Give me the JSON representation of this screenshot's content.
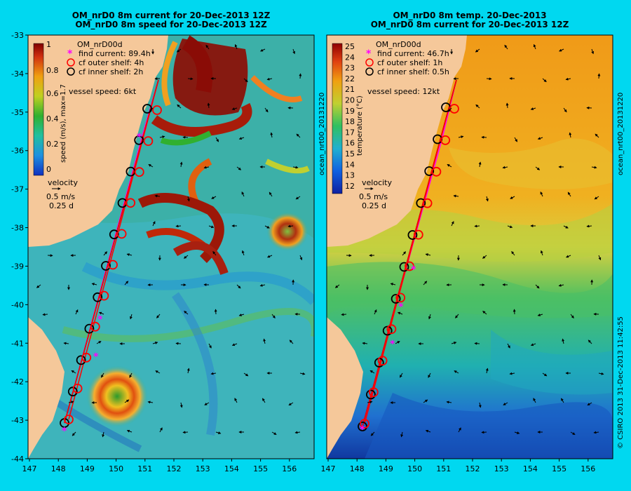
{
  "panels": [
    {
      "title_line1": "OM_nrD0 8m current for 20-Dec-2013 12Z",
      "title_line2": "OM_nrD0 8m speed for 20-Dec-2013 12Z",
      "model_name": "OM_nrD00d",
      "legend": [
        {
          "text": "find current: 89.4h",
          "symbol": "asterisk",
          "color": "#ff00ff"
        },
        {
          "text": "cf outer shelf: 4h",
          "symbol": "circle",
          "color": "#ff0000"
        },
        {
          "text": "cf inner shelf: 2h",
          "symbol": "circle",
          "color": "#000000"
        }
      ],
      "vessel_speed": "vessel speed: 6kt",
      "colorbar_label": "speed (m/s), max=1.7",
      "colorbar_ticks": [
        "1",
        "0.8",
        "0.6",
        "0.4",
        "0.2",
        "0"
      ],
      "velocity_label": "velocity",
      "velocity_scale": "0.5 m/s",
      "velocity_time": "0.25 d"
    },
    {
      "title_line1": "OM_nrD0 8m temp. 20-Dec-2013",
      "title_line2": "OM_nrD0 8m current for 20-Dec-2013 12Z",
      "model_name": "OM_nrD00d",
      "legend": [
        {
          "text": "find current: 46.7h",
          "symbol": "asterisk",
          "color": "#ff00ff"
        },
        {
          "text": "cf outer shelf: 1h",
          "symbol": "circle",
          "color": "#ff0000"
        },
        {
          "text": "cf inner shelf: 0.5h",
          "symbol": "circle",
          "color": "#000000"
        }
      ],
      "vessel_speed": "vessel speed: 12kt",
      "colorbar_label": "temperature (°C)",
      "colorbar_ticks": [
        "25",
        "24",
        "23",
        "22",
        "21",
        "20",
        "19",
        "18",
        "17",
        "16",
        "15",
        "14",
        "13",
        "12"
      ],
      "velocity_label": "velocity",
      "velocity_scale": "0.5 m/s",
      "velocity_time": "0.25 d"
    }
  ],
  "x_ticks": [
    "147",
    "148",
    "149",
    "150",
    "151",
    "152",
    "153",
    "154",
    "155",
    "156"
  ],
  "y_ticks": [
    "-33",
    "-34",
    "-35",
    "-36",
    "-37",
    "-38",
    "-39",
    "-40",
    "-41",
    "-42",
    "-43",
    "-44"
  ],
  "side_label_left": "ocean_nrt00_20131220",
  "side_label_right": "ocean_nrt00_20131220",
  "copyright": "© CSIRO 2013   31-Dec-2013 11:42:55",
  "colors": {
    "land": "#f5c89a",
    "background": "#00d8f0"
  }
}
